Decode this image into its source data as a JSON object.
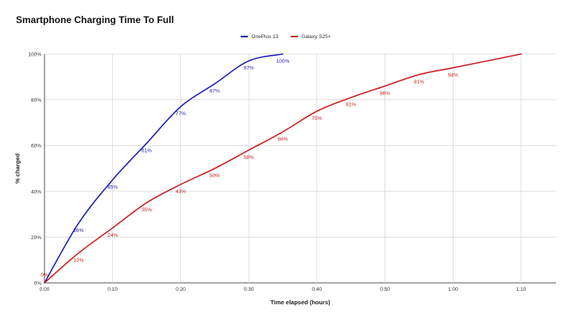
{
  "chart_data": {
    "type": "line",
    "title": "Smartphone Charging Time To Full",
    "xlabel": "Time elapsed (hours)",
    "ylabel": "% charged",
    "x_ticks": [
      "0:00",
      "0:10",
      "0:20",
      "0:30",
      "0:40",
      "0:50",
      "1:00",
      "1:10"
    ],
    "x_tick_minutes": [
      0,
      10,
      20,
      30,
      40,
      50,
      60,
      70
    ],
    "y_ticks": [
      "0%",
      "20%",
      "40%",
      "60%",
      "80%",
      "100%"
    ],
    "y_tick_values": [
      0,
      20,
      40,
      60,
      80,
      100
    ],
    "xlim": [
      0,
      75
    ],
    "ylim": [
      0,
      100
    ],
    "grid": true,
    "legend_position": "top-center",
    "series": [
      {
        "name": "OnePlus 13",
        "color": "#2323b5",
        "x": [
          0,
          5,
          10,
          15,
          20,
          25,
          30,
          35
        ],
        "y": [
          0,
          26,
          45,
          61,
          77,
          87,
          97,
          100
        ],
        "labels": [
          "",
          "26%",
          "45%",
          "61%",
          "77%",
          "87%",
          "97%",
          "100%"
        ]
      },
      {
        "name": "Galaxy S25+",
        "color": "#cc2222",
        "x": [
          0,
          5,
          10,
          15,
          20,
          25,
          30,
          35,
          40,
          45,
          50,
          55,
          60,
          70
        ],
        "y": [
          0,
          13,
          24,
          35,
          43,
          50,
          58,
          66,
          75,
          81,
          86,
          91,
          94,
          100
        ],
        "labels": [
          "0%",
          "13%",
          "24%",
          "35%",
          "43%",
          "50%",
          "58%",
          "66%",
          "75%",
          "81%",
          "86%",
          "91%",
          "94%",
          ""
        ]
      }
    ]
  }
}
